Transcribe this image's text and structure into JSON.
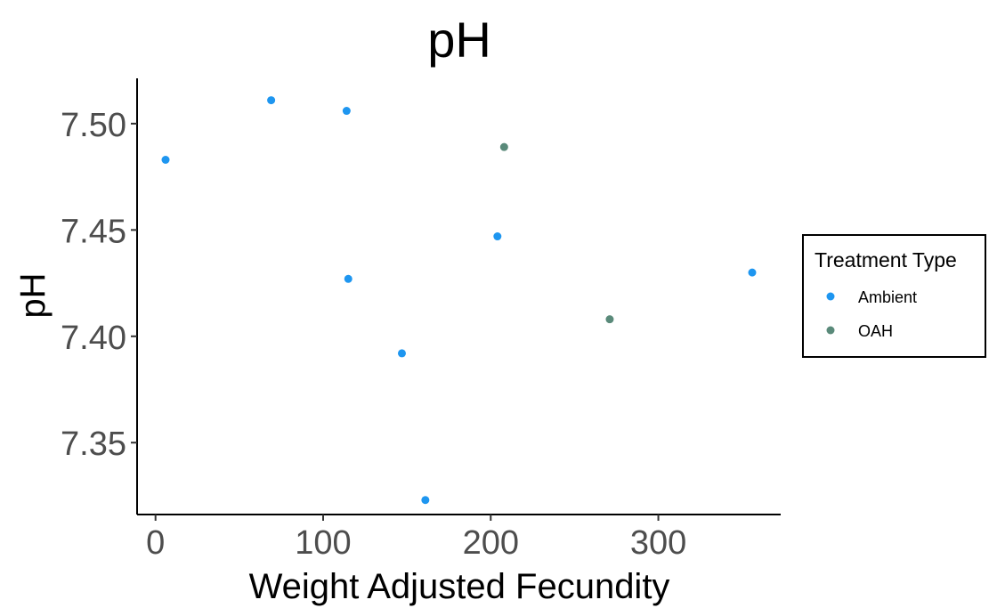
{
  "chart_data": {
    "type": "scatter",
    "title": "pH",
    "xlabel": "Weight Adjusted Fecundity",
    "ylabel": "pH",
    "xlim": [
      -11,
      373
    ],
    "ylim": [
      7.3162,
      7.5213
    ],
    "x_ticks": [
      0,
      100,
      200,
      300
    ],
    "y_ticks": [
      7.35,
      7.4,
      7.45,
      7.5
    ],
    "x_tick_labels": [
      "0",
      "100",
      "200",
      "300"
    ],
    "y_tick_labels": [
      "7.35",
      "7.40",
      "7.45",
      "7.50"
    ],
    "grid": false,
    "legend": {
      "title": "Treatment Type",
      "placement": "right"
    },
    "series": [
      {
        "name": "Ambient",
        "color": "#1e96f0",
        "points": [
          {
            "x": 6,
            "y": 7.483
          },
          {
            "x": 69,
            "y": 7.511
          },
          {
            "x": 114,
            "y": 7.506
          },
          {
            "x": 115,
            "y": 7.427
          },
          {
            "x": 147,
            "y": 7.392
          },
          {
            "x": 161,
            "y": 7.323
          },
          {
            "x": 204,
            "y": 7.447
          },
          {
            "x": 356,
            "y": 7.43
          }
        ]
      },
      {
        "name": "OAH",
        "color": "#5a8a7a",
        "points": [
          {
            "x": 208,
            "y": 7.489
          },
          {
            "x": 271,
            "y": 7.408
          }
        ]
      }
    ]
  }
}
